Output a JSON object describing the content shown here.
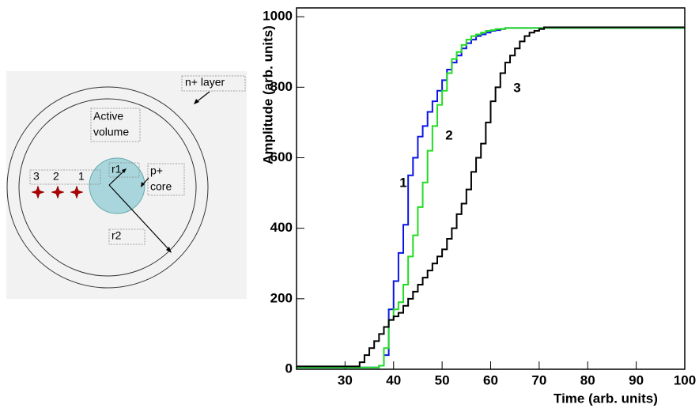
{
  "diagram": {
    "n_layer": "n+ layer",
    "active_volume": [
      "Active",
      "volume"
    ],
    "positions": [
      "3",
      "2",
      "1"
    ],
    "r1": "r1",
    "p_core": [
      "p+",
      "core"
    ],
    "r2": "r2"
  },
  "chart_data": {
    "type": "step",
    "x_label": "Time (arb. units)",
    "y_label": "Amplitude (arb. units)",
    "xlim": [
      20,
      100
    ],
    "ylim": [
      0,
      1025
    ],
    "xticks": [
      30,
      40,
      50,
      60,
      70,
      80,
      90,
      100
    ],
    "yticks": [
      0,
      200,
      400,
      600,
      800,
      1000
    ],
    "x": [
      20,
      21,
      22,
      23,
      24,
      25,
      26,
      27,
      28,
      29,
      30,
      31,
      32,
      33,
      34,
      35,
      36,
      37,
      38,
      39,
      40,
      41,
      42,
      43,
      44,
      45,
      46,
      47,
      48,
      49,
      50,
      51,
      52,
      53,
      54,
      55,
      56,
      57,
      58,
      59,
      60,
      61,
      62,
      63,
      64,
      65,
      66,
      67,
      68,
      69,
      70,
      71,
      72,
      73,
      74,
      75,
      76,
      77,
      78,
      79,
      80,
      81,
      82,
      83,
      84,
      85,
      86,
      87,
      88,
      89,
      90,
      91,
      92,
      93,
      94,
      95,
      96,
      97,
      98,
      99
    ],
    "series": [
      {
        "color": "#0a14e6",
        "values": [
          5,
          5,
          5,
          5,
          5,
          5,
          5,
          5,
          5,
          5,
          5,
          5,
          5,
          5,
          5,
          5,
          5,
          10,
          40,
          170,
          250,
          330,
          410,
          550,
          600,
          660,
          690,
          730,
          760,
          790,
          820,
          850,
          870,
          890,
          910,
          925,
          935,
          945,
          950,
          955,
          960,
          962,
          965,
          968,
          968,
          968,
          968,
          968,
          968,
          968,
          968,
          968,
          968,
          968,
          968,
          968,
          968,
          968,
          968,
          968,
          968,
          968,
          968,
          968,
          968,
          968,
          968,
          968,
          968,
          968,
          968,
          968,
          968,
          968,
          968,
          968,
          968,
          968,
          968,
          968
        ]
      },
      {
        "color": "#22dd22",
        "values": [
          5,
          5,
          5,
          5,
          5,
          5,
          5,
          5,
          5,
          5,
          5,
          5,
          5,
          5,
          5,
          5,
          5,
          10,
          60,
          140,
          170,
          190,
          240,
          320,
          380,
          460,
          530,
          620,
          690,
          750,
          790,
          840,
          880,
          900,
          920,
          935,
          945,
          950,
          955,
          960,
          962,
          965,
          965,
          968,
          968,
          968,
          968,
          968,
          968,
          968,
          968,
          968,
          968,
          968,
          968,
          968,
          968,
          968,
          968,
          968,
          968,
          968,
          968,
          968,
          968,
          968,
          968,
          968,
          968,
          968,
          968,
          968,
          968,
          968,
          968,
          968,
          968,
          968,
          968,
          968
        ]
      },
      {
        "color": "#000000",
        "values": [
          8,
          8,
          8,
          8,
          8,
          8,
          8,
          8,
          8,
          8,
          8,
          8,
          8,
          20,
          40,
          60,
          80,
          100,
          120,
          140,
          150,
          160,
          180,
          200,
          220,
          240,
          260,
          280,
          300,
          320,
          340,
          370,
          400,
          440,
          470,
          510,
          560,
          600,
          640,
          700,
          760,
          800,
          840,
          870,
          890,
          910,
          930,
          945,
          955,
          960,
          965,
          970,
          970,
          970,
          970,
          970,
          970,
          970,
          970,
          970,
          970,
          970,
          970,
          970,
          970,
          970,
          970,
          970,
          970,
          970,
          970,
          970,
          970,
          970,
          970,
          970,
          970,
          970,
          970,
          970
        ]
      }
    ],
    "annotations": [
      "1",
      "2",
      "3"
    ]
  }
}
